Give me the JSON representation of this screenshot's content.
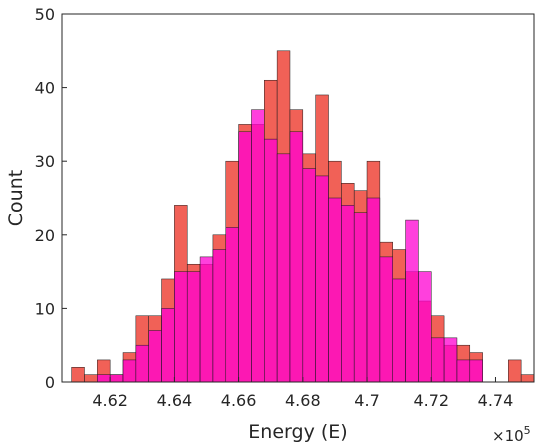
{
  "chart_data": {
    "type": "bar",
    "subtype": "overlaid-histogram",
    "title": "",
    "xlabel": "Energy (E)",
    "ylabel": "Count",
    "x_exponent_label": "×10",
    "x_exponent_power": "5",
    "xlim": [
      4.605,
      4.752
    ],
    "ylim": [
      0,
      50
    ],
    "bin_width": 0.004,
    "xticks": [
      {
        "value": 4.62,
        "label": "4.62"
      },
      {
        "value": 4.64,
        "label": "4.64"
      },
      {
        "value": 4.66,
        "label": "4.66"
      },
      {
        "value": 4.68,
        "label": "4.68"
      },
      {
        "value": 4.7,
        "label": "4.7"
      },
      {
        "value": 4.72,
        "label": "4.72"
      },
      {
        "value": 4.74,
        "label": "4.74"
      }
    ],
    "yticks": [
      {
        "value": 0,
        "label": "0"
      },
      {
        "value": 10,
        "label": "10"
      },
      {
        "value": 20,
        "label": "20"
      },
      {
        "value": 30,
        "label": "30"
      },
      {
        "value": 40,
        "label": "40"
      },
      {
        "value": 50,
        "label": "50"
      }
    ],
    "series": [
      {
        "color": "#f0584e",
        "bins": [
          [
            4.608,
            2
          ],
          [
            4.612,
            1
          ],
          [
            4.616,
            3
          ],
          [
            4.62,
            1
          ],
          [
            4.624,
            4
          ],
          [
            4.628,
            9
          ],
          [
            4.632,
            9
          ],
          [
            4.636,
            14
          ],
          [
            4.64,
            24
          ],
          [
            4.644,
            16
          ],
          [
            4.648,
            16
          ],
          [
            4.652,
            20
          ],
          [
            4.656,
            30
          ],
          [
            4.66,
            35
          ],
          [
            4.664,
            35
          ],
          [
            4.668,
            41
          ],
          [
            4.672,
            45
          ],
          [
            4.676,
            37
          ],
          [
            4.68,
            31
          ],
          [
            4.684,
            39
          ],
          [
            4.688,
            30
          ],
          [
            4.692,
            27
          ],
          [
            4.696,
            26
          ],
          [
            4.7,
            30
          ],
          [
            4.704,
            19
          ],
          [
            4.708,
            18
          ],
          [
            4.712,
            15
          ],
          [
            4.716,
            11
          ],
          [
            4.72,
            9
          ],
          [
            4.724,
            5
          ],
          [
            4.728,
            5
          ],
          [
            4.732,
            4
          ],
          [
            4.736,
            0
          ],
          [
            4.74,
            0
          ],
          [
            4.744,
            3
          ],
          [
            4.748,
            1
          ]
        ]
      },
      {
        "color": "#ff00d2",
        "bins": [
          [
            4.608,
            0
          ],
          [
            4.612,
            0
          ],
          [
            4.616,
            1
          ],
          [
            4.62,
            1
          ],
          [
            4.624,
            3
          ],
          [
            4.628,
            5
          ],
          [
            4.632,
            7
          ],
          [
            4.636,
            10
          ],
          [
            4.64,
            15
          ],
          [
            4.644,
            15
          ],
          [
            4.648,
            17
          ],
          [
            4.652,
            18
          ],
          [
            4.656,
            21
          ],
          [
            4.66,
            34
          ],
          [
            4.664,
            37
          ],
          [
            4.668,
            33
          ],
          [
            4.672,
            31
          ],
          [
            4.676,
            34
          ],
          [
            4.68,
            29
          ],
          [
            4.684,
            28
          ],
          [
            4.688,
            25
          ],
          [
            4.692,
            24
          ],
          [
            4.696,
            23
          ],
          [
            4.7,
            25
          ],
          [
            4.704,
            17
          ],
          [
            4.708,
            14
          ],
          [
            4.712,
            22
          ],
          [
            4.716,
            15
          ],
          [
            4.72,
            6
          ],
          [
            4.724,
            6
          ],
          [
            4.728,
            3
          ],
          [
            4.732,
            3
          ],
          [
            4.736,
            0
          ],
          [
            4.74,
            0
          ],
          [
            4.744,
            0
          ],
          [
            4.748,
            0
          ]
        ]
      }
    ],
    "grid": false,
    "legend": "none"
  }
}
